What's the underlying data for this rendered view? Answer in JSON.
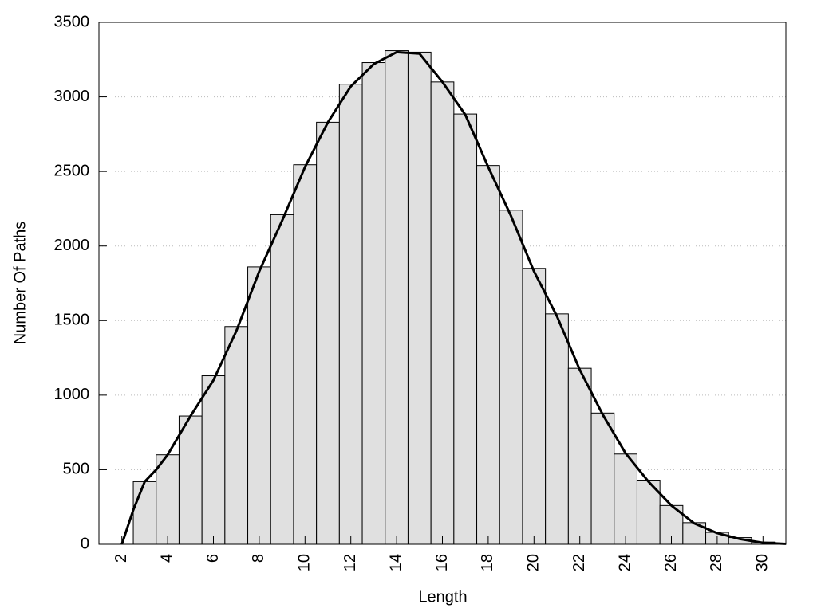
{
  "chart_data": {
    "type": "histogram",
    "xlabel": "Length",
    "ylabel": "Number Of Paths",
    "bins": [
      2.5,
      3.5,
      4.5,
      5.5,
      6.5,
      7.5,
      8.5,
      9.5,
      10.5,
      11.5,
      12.5,
      13.5,
      14.5,
      15.5,
      16.5,
      17.5,
      18.5,
      19.5,
      20.5,
      21.5,
      22.5,
      23.5,
      24.5,
      25.5,
      26.5,
      27.5,
      28.5,
      29.5,
      30.5
    ],
    "values": [
      420,
      600,
      860,
      1130,
      1460,
      1860,
      2210,
      2545,
      2830,
      3085,
      3230,
      3310,
      3300,
      3100,
      2885,
      2540,
      2240,
      1850,
      1545,
      1180,
      880,
      605,
      430,
      260,
      145,
      80,
      45,
      15
    ],
    "color": "#e0e0e0",
    "line": {
      "type": "line",
      "color": "#000000",
      "x": [
        2,
        2.5,
        3,
        3.5,
        4,
        5,
        6,
        7,
        8,
        9,
        10,
        11,
        12,
        13,
        14,
        15,
        16,
        17,
        18,
        19,
        20,
        21,
        22,
        23,
        24,
        25,
        26,
        27,
        28,
        29,
        30,
        31
      ],
      "values": [
        0,
        230,
        420,
        500,
        600,
        860,
        1100,
        1430,
        1830,
        2170,
        2530,
        2830,
        3070,
        3220,
        3300,
        3290,
        3100,
        2880,
        2530,
        2200,
        1830,
        1530,
        1170,
        870,
        610,
        420,
        260,
        140,
        75,
        35,
        10,
        3
      ]
    },
    "xlim": [
      1,
      31
    ],
    "ylim": [
      0,
      3500
    ],
    "xticks": [
      2,
      4,
      6,
      8,
      10,
      12,
      14,
      16,
      18,
      20,
      22,
      24,
      26,
      28,
      30
    ],
    "yticks": [
      0,
      500,
      1000,
      1500,
      2000,
      2500,
      3000,
      3500
    ],
    "grid": true
  }
}
